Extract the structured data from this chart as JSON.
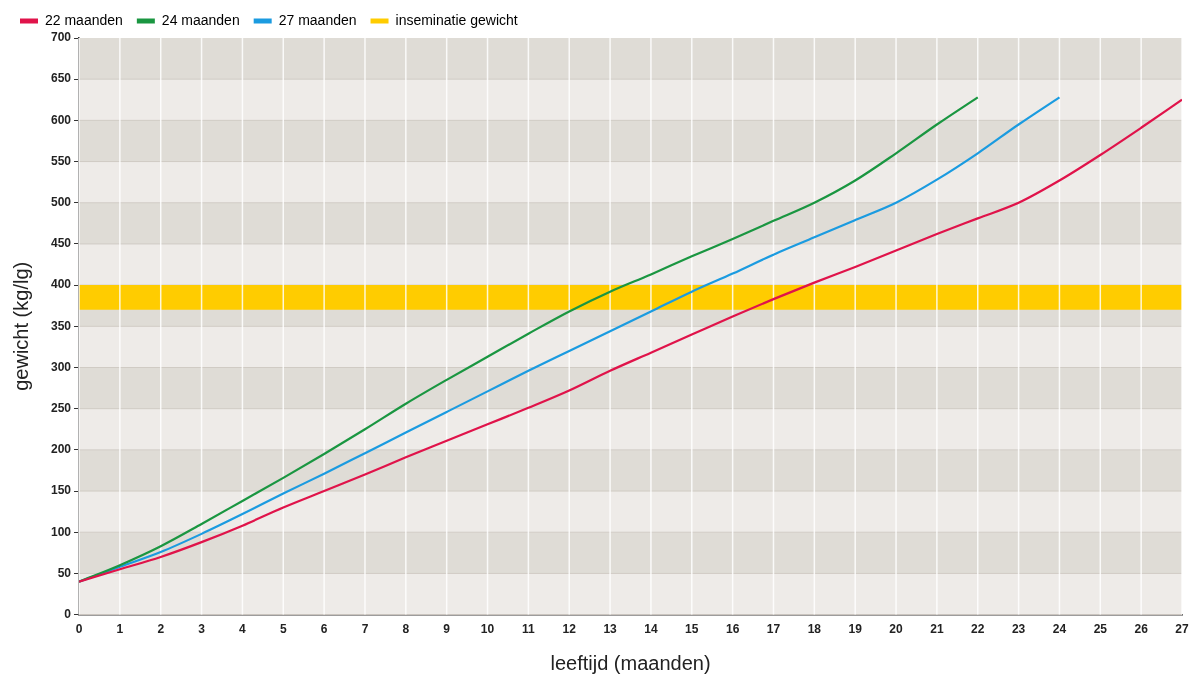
{
  "chart_data": {
    "type": "line",
    "xlabel": "leeftijd (maanden)",
    "ylabel": "gewicht (kg/lg)",
    "x": [
      0,
      1,
      2,
      3,
      4,
      5,
      6,
      7,
      8,
      9,
      10,
      11,
      12,
      13,
      14,
      15,
      16,
      17,
      18,
      19,
      20,
      21,
      22,
      23,
      24,
      25,
      26,
      27
    ],
    "series": [
      {
        "name": "22 maanden",
        "color": "#e0134a",
        "values": [
          40,
          55,
          70,
          88,
          108,
          130,
          150,
          170,
          191,
          211,
          231,
          251,
          272,
          296,
          318,
          340,
          362,
          383,
          403,
          422,
          442,
          462,
          481,
          500,
          527,
          558,
          591,
          625
        ]
      },
      {
        "name": "24 maanden",
        "color": "#1a9641",
        "values": [
          40,
          60,
          83,
          110,
          138,
          166,
          195,
          225,
          256,
          285,
          313,
          341,
          368,
          392,
          413,
          435,
          456,
          478,
          500,
          527,
          560,
          595,
          628,
          null,
          null,
          null,
          null,
          null
        ]
      },
      {
        "name": "27 maanden",
        "color": "#1b9be0",
        "values": [
          40,
          58,
          76,
          98,
          122,
          147,
          171,
          196,
          221,
          246,
          271,
          296,
          320,
          344,
          368,
          392,
          414,
          437,
          458,
          479,
          500,
          528,
          560,
          595,
          628,
          null,
          null,
          null
        ]
      }
    ],
    "bands": [
      {
        "axis": "y",
        "from": 370,
        "to": 400,
        "label": "inseminatie gewicht",
        "color": "#ffcc00"
      }
    ],
    "xlim": [
      0,
      27
    ],
    "xticks": [
      0,
      1,
      2,
      3,
      4,
      5,
      6,
      7,
      8,
      9,
      10,
      11,
      12,
      13,
      14,
      15,
      16,
      17,
      18,
      19,
      20,
      21,
      22,
      23,
      24,
      25,
      26,
      27
    ],
    "ylim": [
      0,
      700
    ],
    "yticks": [
      0,
      50,
      100,
      150,
      200,
      250,
      300,
      350,
      400,
      450,
      500,
      550,
      600,
      650,
      700
    ],
    "grid": true,
    "legend": "top",
    "marker": "none",
    "line_style": "solid"
  }
}
